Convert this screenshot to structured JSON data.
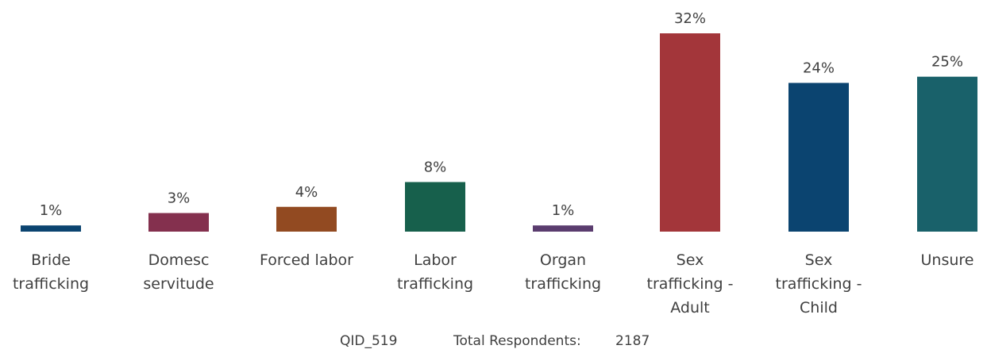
{
  "chart_data": {
    "type": "bar",
    "categories": [
      [
        "Bride",
        "trafficking"
      ],
      [
        "Domesc",
        "servitude"
      ],
      [
        "Forced labor"
      ],
      [
        "Labor",
        "trafficking"
      ],
      [
        "Organ",
        "trafficking"
      ],
      [
        "Sex",
        "trafficking -",
        "Adult"
      ],
      [
        "Sex",
        "trafficking -",
        "Child"
      ],
      [
        "Unsure"
      ]
    ],
    "values": [
      1,
      3,
      4,
      8,
      1,
      32,
      24,
      25
    ],
    "data_labels": [
      "1%",
      "3%",
      "4%",
      "8%",
      "1%",
      "32%",
      "24%",
      "25%"
    ],
    "colors": [
      "#0b4470",
      "#84304e",
      "#924a21",
      "#17604c",
      "#5a3c6e",
      "#a3363a",
      "#0b4470",
      "#19616a"
    ],
    "ylim": [
      0,
      32
    ],
    "grid": false,
    "legend": "none"
  },
  "footer": {
    "qid": "QID_519",
    "respondents_label": "Total Respondents:",
    "respondents_value": "2187"
  }
}
